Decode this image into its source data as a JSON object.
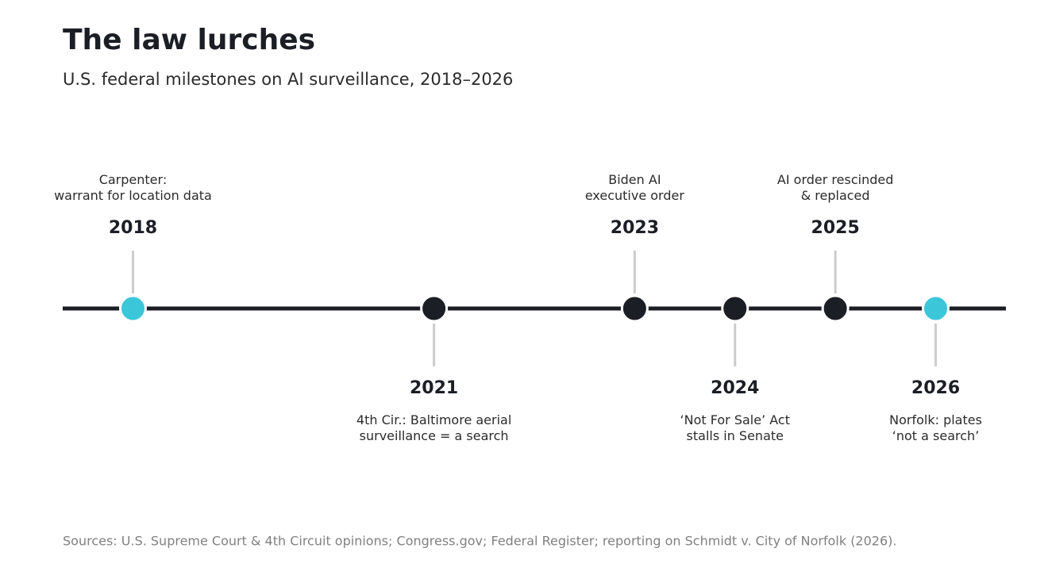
{
  "chart_data": {
    "type": "timeline",
    "title": "The law lurches",
    "subtitle": "U.S. federal milestones on AI surveillance, 2018–2026",
    "x": [
      2018,
      2021,
      2023,
      2024,
      2025,
      2026
    ],
    "labels": [
      "Carpenter:\nwarrant for location data",
      "4th Cir.: Baltimore aerial\nsurveillance = a search",
      "Biden AI\nexecutive order",
      "‘Not For Sale’ Act\nstalls in Senate",
      "AI order rescinded\n& replaced",
      "Norfolk: plates\n‘not a search’"
    ],
    "colors": [
      "#3bc6d9",
      "#1b1e25",
      "#1b1e25",
      "#1b1e25",
      "#1b1e25",
      "#3bc6d9"
    ],
    "xlim": [
      2017.3,
      2026.7
    ],
    "source": "Sources: U.S. Supreme Court & 4th Circuit opinions; Congress.gov; Federal Register; reporting on Schmidt v. City of Norfolk (2026)."
  }
}
